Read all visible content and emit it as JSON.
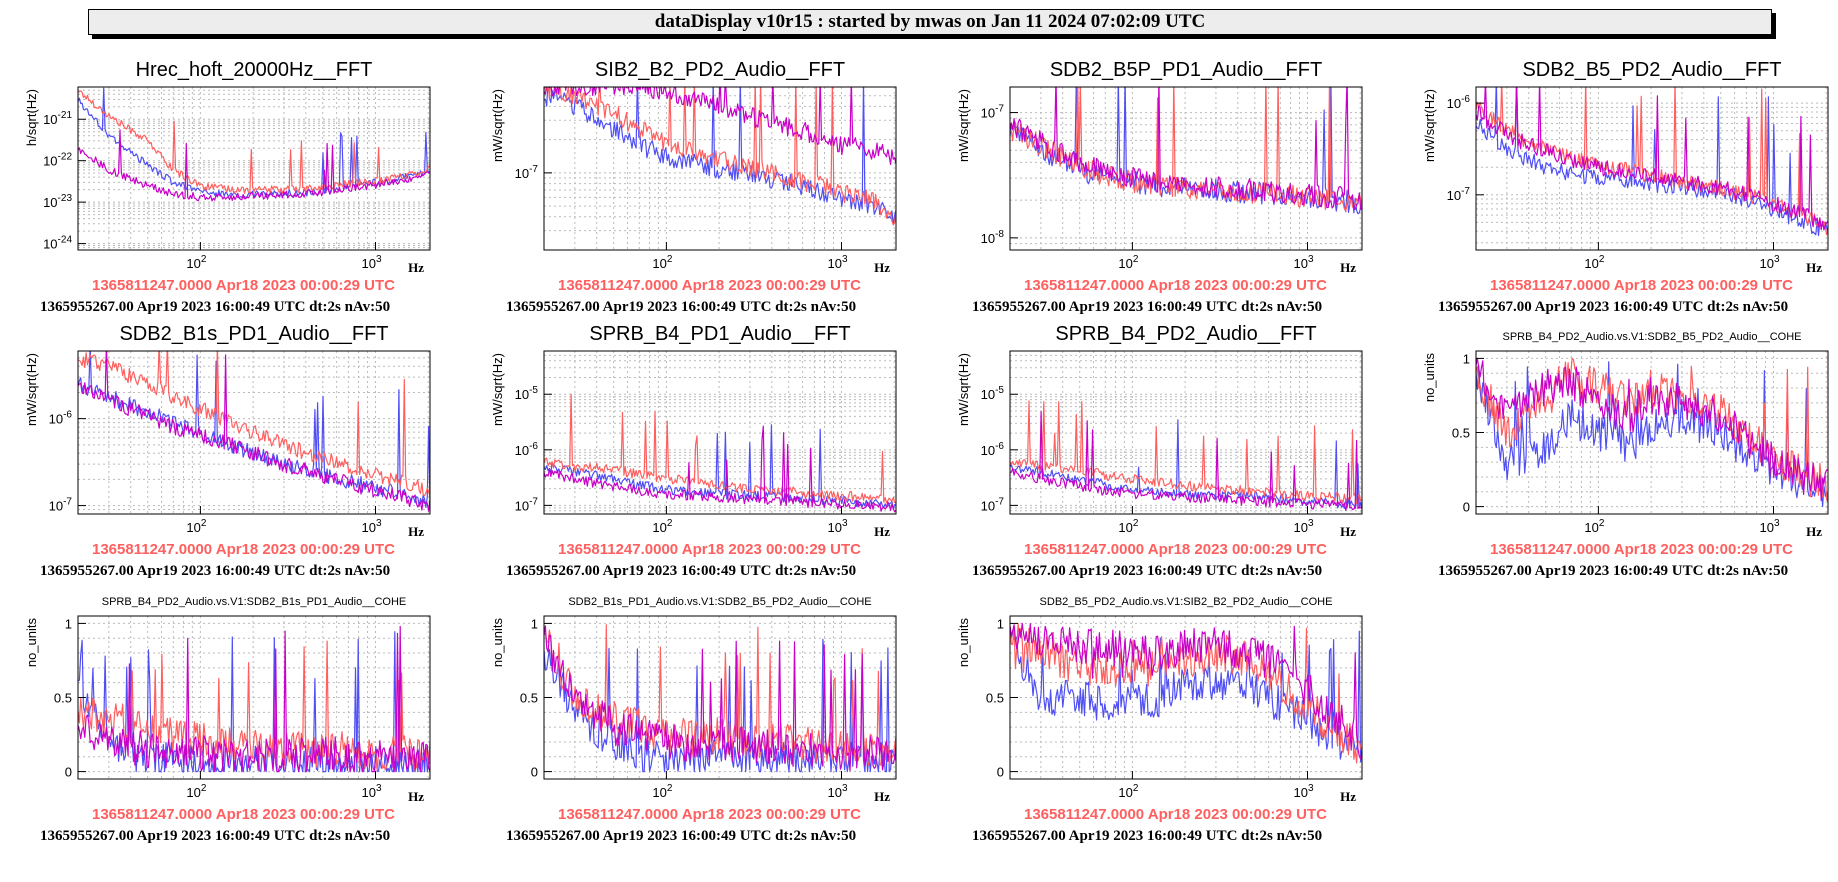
{
  "header": {
    "title": "dataDisplay v10r15 : started by mwas on Jan 11 2024 07:02:09 UTC"
  },
  "colors": {
    "reference": "#ff5f5f",
    "trace_blue": "#4f4ff5",
    "trace_magenta": "#c800c8",
    "grid": "#bbbbbb"
  },
  "common": {
    "xunit": "Hz",
    "ref_time": "1365811247.0000 Apr18 2023 00:00:29 UTC",
    "cur_time": "1365955267.00 Apr19 2023 16:00:49 UTC dt:2s nAv:50",
    "xlim": [
      20,
      2048
    ]
  },
  "chart_data": [
    {
      "type": "line",
      "title": "Hrec_hoft_20000Hz__FFT",
      "ylabel": "h/sqrt(Hz)",
      "yscale": "log",
      "xscale": "log",
      "ylim": [
        7e-25,
        6e-21
      ],
      "yticks": [
        [
          "10",
          "-24",
          -24
        ],
        [
          "10",
          "-23",
          -23
        ],
        [
          "10",
          "-22",
          -22
        ],
        [
          "10",
          "-21",
          -21
        ]
      ],
      "x": [
        20,
        30,
        50,
        70,
        100,
        150,
        200,
        300,
        500,
        700,
        1000,
        1500,
        2048
      ],
      "series": [
        {
          "color": "#4f4ff5",
          "values": [
            3e-21,
            4e-22,
            8e-23,
            3e-23,
            1.8e-23,
            1.5e-23,
            1.5e-23,
            1.6e-23,
            1.8e-23,
            2.5e-23,
            3e-23,
            4e-23,
            6e-23
          ]
        },
        {
          "color": "#c800c8",
          "values": [
            2e-22,
            6e-23,
            2.5e-23,
            1.6e-23,
            1.3e-23,
            1.3e-23,
            1.4e-23,
            1.5e-23,
            1.7e-23,
            2.2e-23,
            2.6e-23,
            3.5e-23,
            5e-23
          ]
        },
        {
          "color": "#ff5f5f",
          "values": [
            5e-21,
            1.2e-21,
            3e-22,
            6e-23,
            2.5e-23,
            2e-23,
            2e-23,
            2e-23,
            2.2e-23,
            2.8e-23,
            3.2e-23,
            4.5e-23,
            6.5e-23
          ]
        }
      ]
    },
    {
      "type": "line",
      "title": "SIB2_B2_PD2_Audio__FFT",
      "ylabel": "mW/sqrt(Hz)",
      "yscale": "log",
      "xscale": "log",
      "ylim": [
        2e-08,
        6e-07
      ],
      "yticks": [
        [
          "10",
          "-7",
          -7
        ]
      ],
      "x": [
        20,
        30,
        50,
        70,
        100,
        150,
        200,
        300,
        500,
        700,
        1000,
        1500,
        2048
      ],
      "series": [
        {
          "color": "#4f4ff5",
          "values": [
            5e-07,
            4e-07,
            2.5e-07,
            1.8e-07,
            1.4e-07,
            1.2e-07,
            1.1e-07,
            1e-07,
            8e-08,
            7e-08,
            6e-08,
            5e-08,
            4e-08
          ]
        },
        {
          "color": "#c800c8",
          "values": [
            6e-07,
            6e-07,
            6e-07,
            6e-07,
            5.5e-07,
            4.5e-07,
            4e-07,
            3.2e-07,
            2.6e-07,
            2.2e-07,
            1.8e-07,
            1.6e-07,
            1.4e-07
          ]
        },
        {
          "color": "#ff5f5f",
          "values": [
            6e-07,
            5e-07,
            3.5e-07,
            2.5e-07,
            1.9e-07,
            1.5e-07,
            1.3e-07,
            1.1e-07,
            9e-08,
            8e-08,
            6.5e-08,
            5.5e-08,
            4e-08
          ]
        }
      ]
    },
    {
      "type": "line",
      "title": "SDB2_B5P_PD1_Audio__FFT",
      "ylabel": "mW/sqrt(Hz)",
      "yscale": "log",
      "xscale": "log",
      "ylim": [
        8e-09,
        1.6e-07
      ],
      "yticks": [
        [
          "10",
          "-8",
          -8
        ],
        [
          "10",
          "-7",
          -7
        ]
      ],
      "x": [
        20,
        30,
        50,
        70,
        100,
        150,
        200,
        300,
        500,
        700,
        1000,
        1500,
        2048
      ],
      "series": [
        {
          "color": "#4f4ff5",
          "values": [
            7e-08,
            5e-08,
            3.5e-08,
            3e-08,
            2.8e-08,
            2.6e-08,
            2.5e-08,
            2.4e-08,
            2.3e-08,
            2.2e-08,
            2.1e-08,
            2e-08,
            1.9e-08
          ]
        },
        {
          "color": "#c800c8",
          "values": [
            8e-08,
            6e-08,
            4e-08,
            3.3e-08,
            3e-08,
            2.7e-08,
            2.6e-08,
            2.5e-08,
            2.4e-08,
            2.3e-08,
            2.2e-08,
            2.1e-08,
            2e-08
          ]
        },
        {
          "color": "#ff5f5f",
          "values": [
            7.5e-08,
            5.5e-08,
            3.8e-08,
            3.1e-08,
            2.8e-08,
            2.6e-08,
            2.5e-08,
            2.4e-08,
            2.3e-08,
            2.2e-08,
            2.1e-08,
            2e-08,
            1.9e-08
          ]
        }
      ]
    },
    {
      "type": "line",
      "title": "SDB2_B5_PD2_Audio__FFT",
      "ylabel": "mW/sqrt(Hz)",
      "yscale": "log",
      "xscale": "log",
      "ylim": [
        2.5e-08,
        1.5e-06
      ],
      "yticks": [
        [
          "10",
          "-7",
          -7
        ],
        [
          "10",
          "-6",
          -6
        ]
      ],
      "x": [
        20,
        30,
        50,
        70,
        100,
        150,
        200,
        300,
        500,
        700,
        1000,
        1500,
        2048
      ],
      "series": [
        {
          "color": "#4f4ff5",
          "values": [
            6e-07,
            3e-07,
            2e-07,
            1.7e-07,
            1.5e-07,
            1.4e-07,
            1.3e-07,
            1.2e-07,
            1.1e-07,
            9e-08,
            7e-08,
            5e-08,
            4e-08
          ]
        },
        {
          "color": "#c800c8",
          "values": [
            8e-07,
            4.5e-07,
            3e-07,
            2.4e-07,
            2e-07,
            1.8e-07,
            1.6e-07,
            1.4e-07,
            1.2e-07,
            1e-07,
            8e-08,
            6e-08,
            4.5e-08
          ]
        },
        {
          "color": "#ff5f5f",
          "values": [
            9e-07,
            5e-07,
            3.2e-07,
            2.5e-07,
            2.1e-07,
            1.8e-07,
            1.6e-07,
            1.4e-07,
            1.2e-07,
            1e-07,
            8e-08,
            6e-08,
            4e-08
          ]
        }
      ]
    },
    {
      "type": "line",
      "title": "SDB2_B1s_PD1_Audio__FFT",
      "ylabel": "mW/sqrt(Hz)",
      "yscale": "log",
      "xscale": "log",
      "ylim": [
        8e-08,
        6e-06
      ],
      "yticks": [
        [
          "10",
          "-7",
          -7
        ],
        [
          "10",
          "-6",
          -6
        ]
      ],
      "x": [
        20,
        30,
        50,
        70,
        100,
        150,
        200,
        300,
        500,
        700,
        1000,
        1500,
        2048
      ],
      "series": [
        {
          "color": "#4f4ff5",
          "values": [
            2.5e-06,
            1.8e-06,
            1.2e-06,
            9e-07,
            7e-07,
            5e-07,
            4e-07,
            3e-07,
            2.3e-07,
            1.9e-07,
            1.6e-07,
            1.3e-07,
            1.1e-07
          ]
        },
        {
          "color": "#c800c8",
          "values": [
            2.5e-06,
            1.6e-06,
            1.1e-06,
            8e-07,
            6.5e-07,
            5e-07,
            4e-07,
            3e-07,
            2.2e-07,
            1.8e-07,
            1.5e-07,
            1.2e-07,
            1e-07
          ]
        },
        {
          "color": "#ff5f5f",
          "values": [
            5e-06,
            4e-06,
            2.5e-06,
            1.8e-06,
            1.3e-06,
            9e-07,
            7e-07,
            5e-07,
            3.5e-07,
            2.8e-07,
            2.2e-07,
            1.8e-07,
            1.5e-07
          ]
        }
      ]
    },
    {
      "type": "line",
      "title": "SPRB_B4_PD1_Audio__FFT",
      "ylabel": "mW/sqrt(Hz)",
      "yscale": "log",
      "xscale": "log",
      "ylim": [
        7e-08,
        6e-05
      ],
      "yticks": [
        [
          "10",
          "-7",
          -7
        ],
        [
          "10",
          "-6",
          -6
        ],
        [
          "10",
          "-5",
          -5
        ]
      ],
      "x": [
        20,
        30,
        50,
        70,
        100,
        150,
        200,
        300,
        500,
        700,
        1000,
        1500,
        2048
      ],
      "series": [
        {
          "color": "#4f4ff5",
          "values": [
            5e-07,
            4e-07,
            3e-07,
            2.3e-07,
            1.9e-07,
            1.7e-07,
            1.6e-07,
            1.5e-07,
            1.4e-07,
            1.3e-07,
            1.2e-07,
            1.1e-07,
            1e-07
          ]
        },
        {
          "color": "#c800c8",
          "values": [
            4e-07,
            3e-07,
            2.2e-07,
            1.8e-07,
            1.6e-07,
            1.5e-07,
            1.4e-07,
            1.3e-07,
            1.2e-07,
            1.1e-07,
            1.05e-07,
            1e-07,
            9e-08
          ]
        },
        {
          "color": "#ff5f5f",
          "values": [
            6e-07,
            5e-07,
            4.5e-07,
            3.5e-07,
            3e-07,
            2.6e-07,
            2.3e-07,
            2e-07,
            1.8e-07,
            1.6e-07,
            1.5e-07,
            1.4e-07,
            1.3e-07
          ]
        }
      ]
    },
    {
      "type": "line",
      "title": "SPRB_B4_PD2_Audio__FFT",
      "ylabel": "mW/sqrt(Hz)",
      "yscale": "log",
      "xscale": "log",
      "ylim": [
        7e-08,
        6e-05
      ],
      "yticks": [
        [
          "10",
          "-7",
          -7
        ],
        [
          "10",
          "-6",
          -6
        ],
        [
          "10",
          "-5",
          -5
        ]
      ],
      "x": [
        20,
        30,
        50,
        70,
        100,
        150,
        200,
        300,
        500,
        700,
        1000,
        1500,
        2048
      ],
      "series": [
        {
          "color": "#4f4ff5",
          "values": [
            5e-07,
            4e-07,
            3e-07,
            2.3e-07,
            1.9e-07,
            1.7e-07,
            1.6e-07,
            1.5e-07,
            1.4e-07,
            1.3e-07,
            1.2e-07,
            1.1e-07,
            1e-07
          ]
        },
        {
          "color": "#c800c8",
          "values": [
            4e-07,
            3e-07,
            2.2e-07,
            1.8e-07,
            1.6e-07,
            1.5e-07,
            1.4e-07,
            1.3e-07,
            1.2e-07,
            1.1e-07,
            1.05e-07,
            1e-07,
            9e-08
          ]
        },
        {
          "color": "#ff5f5f",
          "values": [
            6e-07,
            5e-07,
            4.5e-07,
            3.5e-07,
            3e-07,
            2.6e-07,
            2.3e-07,
            2e-07,
            1.8e-07,
            1.6e-07,
            1.5e-07,
            1.4e-07,
            1.3e-07
          ]
        }
      ]
    },
    {
      "type": "line",
      "title": "SPRB_B4_PD2_Audio.vs.V1:SDB2_B5_PD2_Audio__COHE",
      "ylabel": "no_units",
      "yscale": "linear",
      "xscale": "log",
      "ylim": [
        -0.05,
        1.05
      ],
      "yticks": [
        [
          "0",
          "",
          0
        ],
        [
          "0.5",
          "",
          0.5
        ],
        [
          "1",
          "",
          1
        ]
      ],
      "x": [
        20,
        30,
        50,
        70,
        100,
        150,
        200,
        300,
        500,
        700,
        1000,
        1500,
        2048
      ],
      "series": [
        {
          "color": "#4f4ff5",
          "values": [
            0.9,
            0.3,
            0.4,
            0.6,
            0.5,
            0.4,
            0.55,
            0.6,
            0.5,
            0.35,
            0.25,
            0.15,
            0.1
          ]
        },
        {
          "color": "#c800c8",
          "values": [
            0.95,
            0.6,
            0.8,
            0.85,
            0.7,
            0.6,
            0.75,
            0.7,
            0.6,
            0.45,
            0.3,
            0.2,
            0.15
          ]
        },
        {
          "color": "#ff5f5f",
          "values": [
            0.9,
            0.5,
            0.75,
            0.9,
            0.8,
            0.7,
            0.8,
            0.75,
            0.65,
            0.5,
            0.35,
            0.2,
            0.15
          ]
        }
      ]
    },
    {
      "type": "line",
      "title": "SPRB_B4_PD2_Audio.vs.V1:SDB2_B1s_PD1_Audio__COHE",
      "ylabel": "no_units",
      "yscale": "linear",
      "xscale": "log",
      "ylim": [
        -0.05,
        1.05
      ],
      "yticks": [
        [
          "0",
          "",
          0
        ],
        [
          "0.5",
          "",
          0.5
        ],
        [
          "1",
          "",
          1
        ]
      ],
      "x": [
        20,
        30,
        50,
        70,
        100,
        150,
        200,
        300,
        500,
        700,
        1000,
        1500,
        2048
      ],
      "series": [
        {
          "color": "#4f4ff5",
          "values": [
            0.6,
            0.2,
            0.05,
            0.08,
            0.05,
            0.04,
            0.05,
            0.04,
            0.05,
            0.04,
            0.05,
            0.04,
            0.05
          ]
        },
        {
          "color": "#c800c8",
          "values": [
            0.3,
            0.2,
            0.15,
            0.12,
            0.12,
            0.1,
            0.12,
            0.1,
            0.12,
            0.1,
            0.1,
            0.1,
            0.08
          ]
        },
        {
          "color": "#ff5f5f",
          "values": [
            0.4,
            0.35,
            0.3,
            0.25,
            0.2,
            0.2,
            0.18,
            0.15,
            0.15,
            0.15,
            0.12,
            0.12,
            0.1
          ]
        }
      ]
    },
    {
      "type": "line",
      "title": "SDB2_B1s_PD1_Audio.vs.V1:SDB2_B5_PD2_Audio__COHE",
      "ylabel": "no_units",
      "yscale": "linear",
      "xscale": "log",
      "ylim": [
        -0.05,
        1.05
      ],
      "yticks": [
        [
          "0",
          "",
          0
        ],
        [
          "0.5",
          "",
          0.5
        ],
        [
          "1",
          "",
          1
        ]
      ],
      "x": [
        20,
        30,
        50,
        70,
        100,
        150,
        200,
        300,
        500,
        700,
        1000,
        1500,
        2048
      ],
      "series": [
        {
          "color": "#4f4ff5",
          "values": [
            0.8,
            0.4,
            0.2,
            0.12,
            0.1,
            0.08,
            0.1,
            0.08,
            0.08,
            0.06,
            0.06,
            0.05,
            0.05
          ]
        },
        {
          "color": "#c800c8",
          "values": [
            0.9,
            0.5,
            0.3,
            0.25,
            0.2,
            0.18,
            0.2,
            0.18,
            0.15,
            0.15,
            0.12,
            0.12,
            0.1
          ]
        },
        {
          "color": "#ff5f5f",
          "values": [
            0.9,
            0.5,
            0.35,
            0.3,
            0.25,
            0.22,
            0.25,
            0.2,
            0.2,
            0.18,
            0.15,
            0.15,
            0.12
          ]
        }
      ]
    },
    {
      "type": "line",
      "title": "SDB2_B5_PD2_Audio.vs.V1:SIB2_B2_PD2_Audio__COHE",
      "ylabel": "no_units",
      "yscale": "linear",
      "xscale": "log",
      "ylim": [
        -0.05,
        1.05
      ],
      "yticks": [
        [
          "0",
          "",
          0
        ],
        [
          "0.5",
          "",
          0.5
        ],
        [
          "1",
          "",
          1
        ]
      ],
      "x": [
        20,
        30,
        50,
        70,
        100,
        150,
        200,
        300,
        500,
        700,
        1000,
        1500,
        2048
      ],
      "series": [
        {
          "color": "#4f4ff5",
          "values": [
            0.9,
            0.5,
            0.5,
            0.45,
            0.45,
            0.5,
            0.6,
            0.6,
            0.55,
            0.45,
            0.35,
            0.2,
            0.1
          ]
        },
        {
          "color": "#c800c8",
          "values": [
            0.95,
            0.9,
            0.85,
            0.85,
            0.8,
            0.8,
            0.85,
            0.85,
            0.8,
            0.7,
            0.55,
            0.35,
            0.2
          ]
        },
        {
          "color": "#ff5f5f",
          "values": [
            0.95,
            0.8,
            0.7,
            0.7,
            0.7,
            0.7,
            0.75,
            0.8,
            0.75,
            0.6,
            0.45,
            0.25,
            0.15
          ]
        }
      ]
    }
  ]
}
